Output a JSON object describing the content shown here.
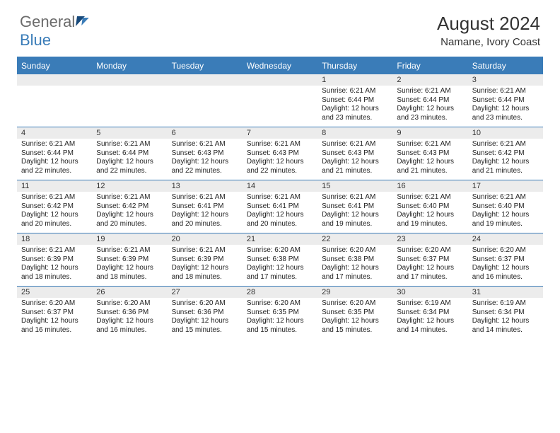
{
  "colors": {
    "brand_blue": "#3a7cb8",
    "brand_dark": "#17497a",
    "text_gray": "#6b6b6b",
    "band_gray": "#ececec",
    "text_color": "#222222",
    "header_text": "#ffffff",
    "background": "#ffffff"
  },
  "logo": {
    "word1": "General",
    "word2": "Blue"
  },
  "title": {
    "month": "August 2024",
    "location": "Namane, Ivory Coast"
  },
  "day_headers": [
    "Sunday",
    "Monday",
    "Tuesday",
    "Wednesday",
    "Thursday",
    "Friday",
    "Saturday"
  ],
  "weeks": [
    [
      {
        "n": "",
        "sr": "",
        "ss": "",
        "dl": ""
      },
      {
        "n": "",
        "sr": "",
        "ss": "",
        "dl": ""
      },
      {
        "n": "",
        "sr": "",
        "ss": "",
        "dl": ""
      },
      {
        "n": "",
        "sr": "",
        "ss": "",
        "dl": ""
      },
      {
        "n": "1",
        "sr": "Sunrise: 6:21 AM",
        "ss": "Sunset: 6:44 PM",
        "dl": "Daylight: 12 hours and 23 minutes."
      },
      {
        "n": "2",
        "sr": "Sunrise: 6:21 AM",
        "ss": "Sunset: 6:44 PM",
        "dl": "Daylight: 12 hours and 23 minutes."
      },
      {
        "n": "3",
        "sr": "Sunrise: 6:21 AM",
        "ss": "Sunset: 6:44 PM",
        "dl": "Daylight: 12 hours and 23 minutes."
      }
    ],
    [
      {
        "n": "4",
        "sr": "Sunrise: 6:21 AM",
        "ss": "Sunset: 6:44 PM",
        "dl": "Daylight: 12 hours and 22 minutes."
      },
      {
        "n": "5",
        "sr": "Sunrise: 6:21 AM",
        "ss": "Sunset: 6:44 PM",
        "dl": "Daylight: 12 hours and 22 minutes."
      },
      {
        "n": "6",
        "sr": "Sunrise: 6:21 AM",
        "ss": "Sunset: 6:43 PM",
        "dl": "Daylight: 12 hours and 22 minutes."
      },
      {
        "n": "7",
        "sr": "Sunrise: 6:21 AM",
        "ss": "Sunset: 6:43 PM",
        "dl": "Daylight: 12 hours and 22 minutes."
      },
      {
        "n": "8",
        "sr": "Sunrise: 6:21 AM",
        "ss": "Sunset: 6:43 PM",
        "dl": "Daylight: 12 hours and 21 minutes."
      },
      {
        "n": "9",
        "sr": "Sunrise: 6:21 AM",
        "ss": "Sunset: 6:43 PM",
        "dl": "Daylight: 12 hours and 21 minutes."
      },
      {
        "n": "10",
        "sr": "Sunrise: 6:21 AM",
        "ss": "Sunset: 6:42 PM",
        "dl": "Daylight: 12 hours and 21 minutes."
      }
    ],
    [
      {
        "n": "11",
        "sr": "Sunrise: 6:21 AM",
        "ss": "Sunset: 6:42 PM",
        "dl": "Daylight: 12 hours and 20 minutes."
      },
      {
        "n": "12",
        "sr": "Sunrise: 6:21 AM",
        "ss": "Sunset: 6:42 PM",
        "dl": "Daylight: 12 hours and 20 minutes."
      },
      {
        "n": "13",
        "sr": "Sunrise: 6:21 AM",
        "ss": "Sunset: 6:41 PM",
        "dl": "Daylight: 12 hours and 20 minutes."
      },
      {
        "n": "14",
        "sr": "Sunrise: 6:21 AM",
        "ss": "Sunset: 6:41 PM",
        "dl": "Daylight: 12 hours and 20 minutes."
      },
      {
        "n": "15",
        "sr": "Sunrise: 6:21 AM",
        "ss": "Sunset: 6:41 PM",
        "dl": "Daylight: 12 hours and 19 minutes."
      },
      {
        "n": "16",
        "sr": "Sunrise: 6:21 AM",
        "ss": "Sunset: 6:40 PM",
        "dl": "Daylight: 12 hours and 19 minutes."
      },
      {
        "n": "17",
        "sr": "Sunrise: 6:21 AM",
        "ss": "Sunset: 6:40 PM",
        "dl": "Daylight: 12 hours and 19 minutes."
      }
    ],
    [
      {
        "n": "18",
        "sr": "Sunrise: 6:21 AM",
        "ss": "Sunset: 6:39 PM",
        "dl": "Daylight: 12 hours and 18 minutes."
      },
      {
        "n": "19",
        "sr": "Sunrise: 6:21 AM",
        "ss": "Sunset: 6:39 PM",
        "dl": "Daylight: 12 hours and 18 minutes."
      },
      {
        "n": "20",
        "sr": "Sunrise: 6:21 AM",
        "ss": "Sunset: 6:39 PM",
        "dl": "Daylight: 12 hours and 18 minutes."
      },
      {
        "n": "21",
        "sr": "Sunrise: 6:20 AM",
        "ss": "Sunset: 6:38 PM",
        "dl": "Daylight: 12 hours and 17 minutes."
      },
      {
        "n": "22",
        "sr": "Sunrise: 6:20 AM",
        "ss": "Sunset: 6:38 PM",
        "dl": "Daylight: 12 hours and 17 minutes."
      },
      {
        "n": "23",
        "sr": "Sunrise: 6:20 AM",
        "ss": "Sunset: 6:37 PM",
        "dl": "Daylight: 12 hours and 17 minutes."
      },
      {
        "n": "24",
        "sr": "Sunrise: 6:20 AM",
        "ss": "Sunset: 6:37 PM",
        "dl": "Daylight: 12 hours and 16 minutes."
      }
    ],
    [
      {
        "n": "25",
        "sr": "Sunrise: 6:20 AM",
        "ss": "Sunset: 6:37 PM",
        "dl": "Daylight: 12 hours and 16 minutes."
      },
      {
        "n": "26",
        "sr": "Sunrise: 6:20 AM",
        "ss": "Sunset: 6:36 PM",
        "dl": "Daylight: 12 hours and 16 minutes."
      },
      {
        "n": "27",
        "sr": "Sunrise: 6:20 AM",
        "ss": "Sunset: 6:36 PM",
        "dl": "Daylight: 12 hours and 15 minutes."
      },
      {
        "n": "28",
        "sr": "Sunrise: 6:20 AM",
        "ss": "Sunset: 6:35 PM",
        "dl": "Daylight: 12 hours and 15 minutes."
      },
      {
        "n": "29",
        "sr": "Sunrise: 6:20 AM",
        "ss": "Sunset: 6:35 PM",
        "dl": "Daylight: 12 hours and 15 minutes."
      },
      {
        "n": "30",
        "sr": "Sunrise: 6:19 AM",
        "ss": "Sunset: 6:34 PM",
        "dl": "Daylight: 12 hours and 14 minutes."
      },
      {
        "n": "31",
        "sr": "Sunrise: 6:19 AM",
        "ss": "Sunset: 6:34 PM",
        "dl": "Daylight: 12 hours and 14 minutes."
      }
    ]
  ]
}
